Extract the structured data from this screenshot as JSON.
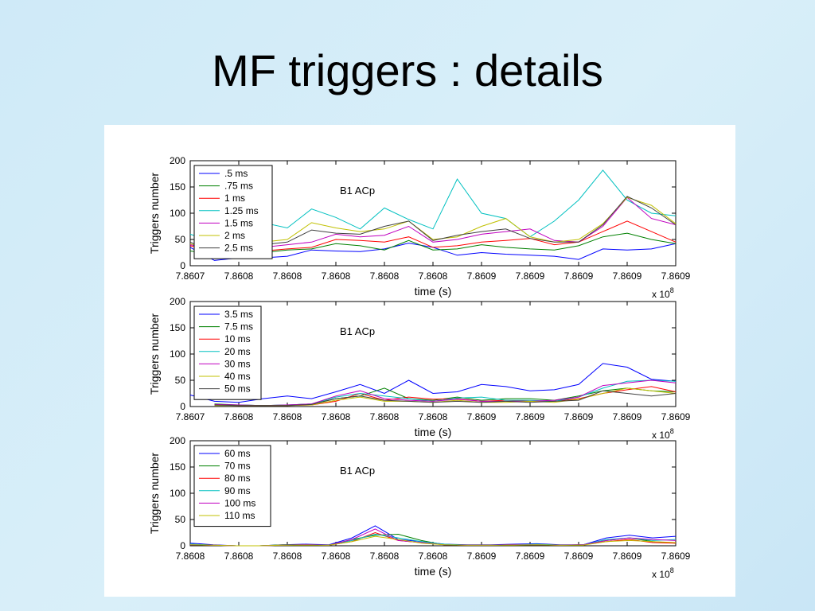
{
  "slide": {
    "title": "MF triggers : details"
  },
  "colors": [
    "#0000ff",
    "#008000",
    "#ff0000",
    "#00c0c0",
    "#c000c0",
    "#c0c000",
    "#404040"
  ],
  "chart_data": [
    {
      "type": "line",
      "annotation": "B1 ACp",
      "xlabel": "time (s)",
      "ylabel": "Triggers number",
      "x_exponent_label": "x 10",
      "x_exponent": "8",
      "ylim": [
        0,
        200
      ],
      "yticks": [
        "0",
        "50",
        "100",
        "150",
        "200"
      ],
      "xtick_labels": [
        "7.8607",
        "7.8608",
        "7.8608",
        "7.8608",
        "7.8608",
        "7.8608",
        "7.8609",
        "7.8609",
        "7.8609",
        "7.8609",
        "7.8609"
      ],
      "legend_position": "top-left",
      "grid": false,
      "series": [
        {
          "name": ".5 ms",
          "values": [
            35,
            10,
            15,
            15,
            18,
            30,
            28,
            27,
            32,
            43,
            35,
            20,
            25,
            22,
            20,
            18,
            12,
            32,
            30,
            32,
            42
          ]
        },
        {
          "name": ".75 ms",
          "values": [
            28,
            22,
            22,
            25,
            30,
            32,
            42,
            38,
            30,
            48,
            30,
            32,
            40,
            35,
            32,
            30,
            38,
            55,
            62,
            50,
            42
          ]
        },
        {
          "name": "1 ms",
          "values": [
            38,
            25,
            25,
            28,
            32,
            35,
            50,
            48,
            45,
            55,
            35,
            38,
            45,
            48,
            52,
            40,
            45,
            65,
            85,
            65,
            45
          ]
        },
        {
          "name": "1.25 ms",
          "values": [
            60,
            45,
            42,
            82,
            72,
            108,
            92,
            70,
            110,
            88,
            70,
            165,
            100,
            90,
            55,
            85,
            125,
            182,
            125,
            100,
            95
          ]
        },
        {
          "name": "1.5 ms",
          "values": [
            40,
            30,
            28,
            35,
            40,
            45,
            60,
            55,
            58,
            75,
            45,
            50,
            60,
            65,
            70,
            48,
            45,
            75,
            130,
            90,
            78
          ]
        },
        {
          "name": "2 ms",
          "values": [
            42,
            28,
            32,
            45,
            50,
            82,
            72,
            65,
            70,
            85,
            50,
            55,
            75,
            90,
            55,
            45,
            50,
            80,
            130,
            115,
            80
          ]
        },
        {
          "name": "2.5 ms",
          "values": [
            45,
            25,
            30,
            40,
            45,
            68,
            62,
            60,
            75,
            85,
            48,
            58,
            65,
            70,
            52,
            45,
            45,
            78,
            132,
            110,
            78
          ]
        }
      ]
    },
    {
      "type": "line",
      "annotation": "B1 ACp",
      "xlabel": "time (s)",
      "ylabel": "Triggers number",
      "x_exponent_label": "x 10",
      "x_exponent": "8",
      "ylim": [
        0,
        200
      ],
      "yticks": [
        "0",
        "50",
        "100",
        "150",
        "200"
      ],
      "xtick_labels": [
        "7.8607",
        "7.8608",
        "7.8608",
        "7.8608",
        "7.8608",
        "7.8608",
        "7.8609",
        "7.8609",
        "7.8609",
        "7.8609",
        "7.8609"
      ],
      "legend_position": "top-left",
      "grid": false,
      "series": [
        {
          "name": "3.5 ms",
          "values": [
            22,
            10,
            8,
            15,
            20,
            15,
            28,
            42,
            25,
            50,
            25,
            28,
            42,
            38,
            30,
            32,
            42,
            82,
            75,
            52,
            48
          ]
        },
        {
          "name": "7.5 ms",
          "values": [
            null,
            5,
            3,
            2,
            3,
            5,
            15,
            20,
            35,
            15,
            12,
            18,
            12,
            15,
            15,
            12,
            20,
            30,
            35,
            30,
            28
          ]
        },
        {
          "name": "10 ms",
          "values": [
            null,
            3,
            2,
            2,
            2,
            3,
            10,
            25,
            12,
            18,
            14,
            15,
            10,
            12,
            10,
            10,
            15,
            25,
            32,
            38,
            28
          ]
        },
        {
          "name": "20 ms",
          "values": [
            null,
            3,
            3,
            2,
            3,
            5,
            18,
            25,
            20,
            15,
            10,
            16,
            18,
            12,
            12,
            10,
            18,
            35,
            48,
            50,
            48
          ]
        },
        {
          "name": "30 ms",
          "values": [
            null,
            4,
            3,
            2,
            3,
            5,
            20,
            30,
            15,
            12,
            10,
            14,
            10,
            10,
            10,
            12,
            18,
            40,
            45,
            50,
            45
          ]
        },
        {
          "name": "40 ms",
          "values": [
            null,
            2,
            2,
            2,
            2,
            3,
            12,
            18,
            10,
            10,
            8,
            12,
            8,
            8,
            10,
            8,
            14,
            25,
            35,
            30,
            25
          ]
        },
        {
          "name": "50 ms",
          "values": [
            null,
            3,
            2,
            2,
            2,
            4,
            15,
            20,
            12,
            10,
            8,
            10,
            8,
            10,
            8,
            10,
            12,
            30,
            25,
            20,
            25
          ]
        }
      ]
    },
    {
      "type": "line",
      "annotation": "B1 ACp",
      "xlabel": "time (s)",
      "ylabel": "Triggers number",
      "x_exponent_label": "x 10",
      "x_exponent": "8",
      "ylim": [
        0,
        200
      ],
      "yticks": [
        "0",
        "50",
        "100",
        "150",
        "200"
      ],
      "xtick_labels": [
        "7.8608",
        "7.8608",
        "7.8608",
        "7.8608",
        "7.8608",
        "7.8608",
        "7.8609",
        "7.8609",
        "7.8609",
        "7.8609",
        "7.8609"
      ],
      "legend_position": "top-left",
      "grid": false,
      "series": [
        {
          "name": "60 ms",
          "values": [
            5,
            2,
            0,
            0,
            2,
            3,
            2,
            15,
            38,
            12,
            8,
            3,
            2,
            2,
            3,
            4,
            2,
            2,
            15,
            20,
            15,
            18
          ]
        },
        {
          "name": "70 ms",
          "values": [
            3,
            1,
            0,
            0,
            2,
            2,
            1,
            12,
            20,
            22,
            10,
            2,
            1,
            1,
            2,
            2,
            1,
            2,
            10,
            15,
            8,
            5
          ]
        },
        {
          "name": "80 ms",
          "values": [
            2,
            1,
            0,
            0,
            1,
            2,
            1,
            8,
            25,
            10,
            6,
            2,
            1,
            1,
            2,
            2,
            1,
            2,
            8,
            12,
            6,
            5
          ]
        },
        {
          "name": "90 ms",
          "values": [
            3,
            1,
            0,
            0,
            1,
            2,
            1,
            10,
            22,
            15,
            8,
            3,
            1,
            1,
            2,
            3,
            1,
            2,
            12,
            15,
            10,
            12
          ]
        },
        {
          "name": "100 ms",
          "values": [
            2,
            1,
            0,
            0,
            1,
            2,
            1,
            12,
            32,
            10,
            6,
            2,
            1,
            1,
            2,
            2,
            1,
            2,
            10,
            15,
            12,
            10
          ]
        },
        {
          "name": "110 ms",
          "values": [
            2,
            1,
            0,
            0,
            1,
            1,
            1,
            8,
            18,
            12,
            5,
            2,
            1,
            1,
            1,
            2,
            1,
            1,
            8,
            10,
            8,
            6
          ]
        }
      ]
    }
  ]
}
